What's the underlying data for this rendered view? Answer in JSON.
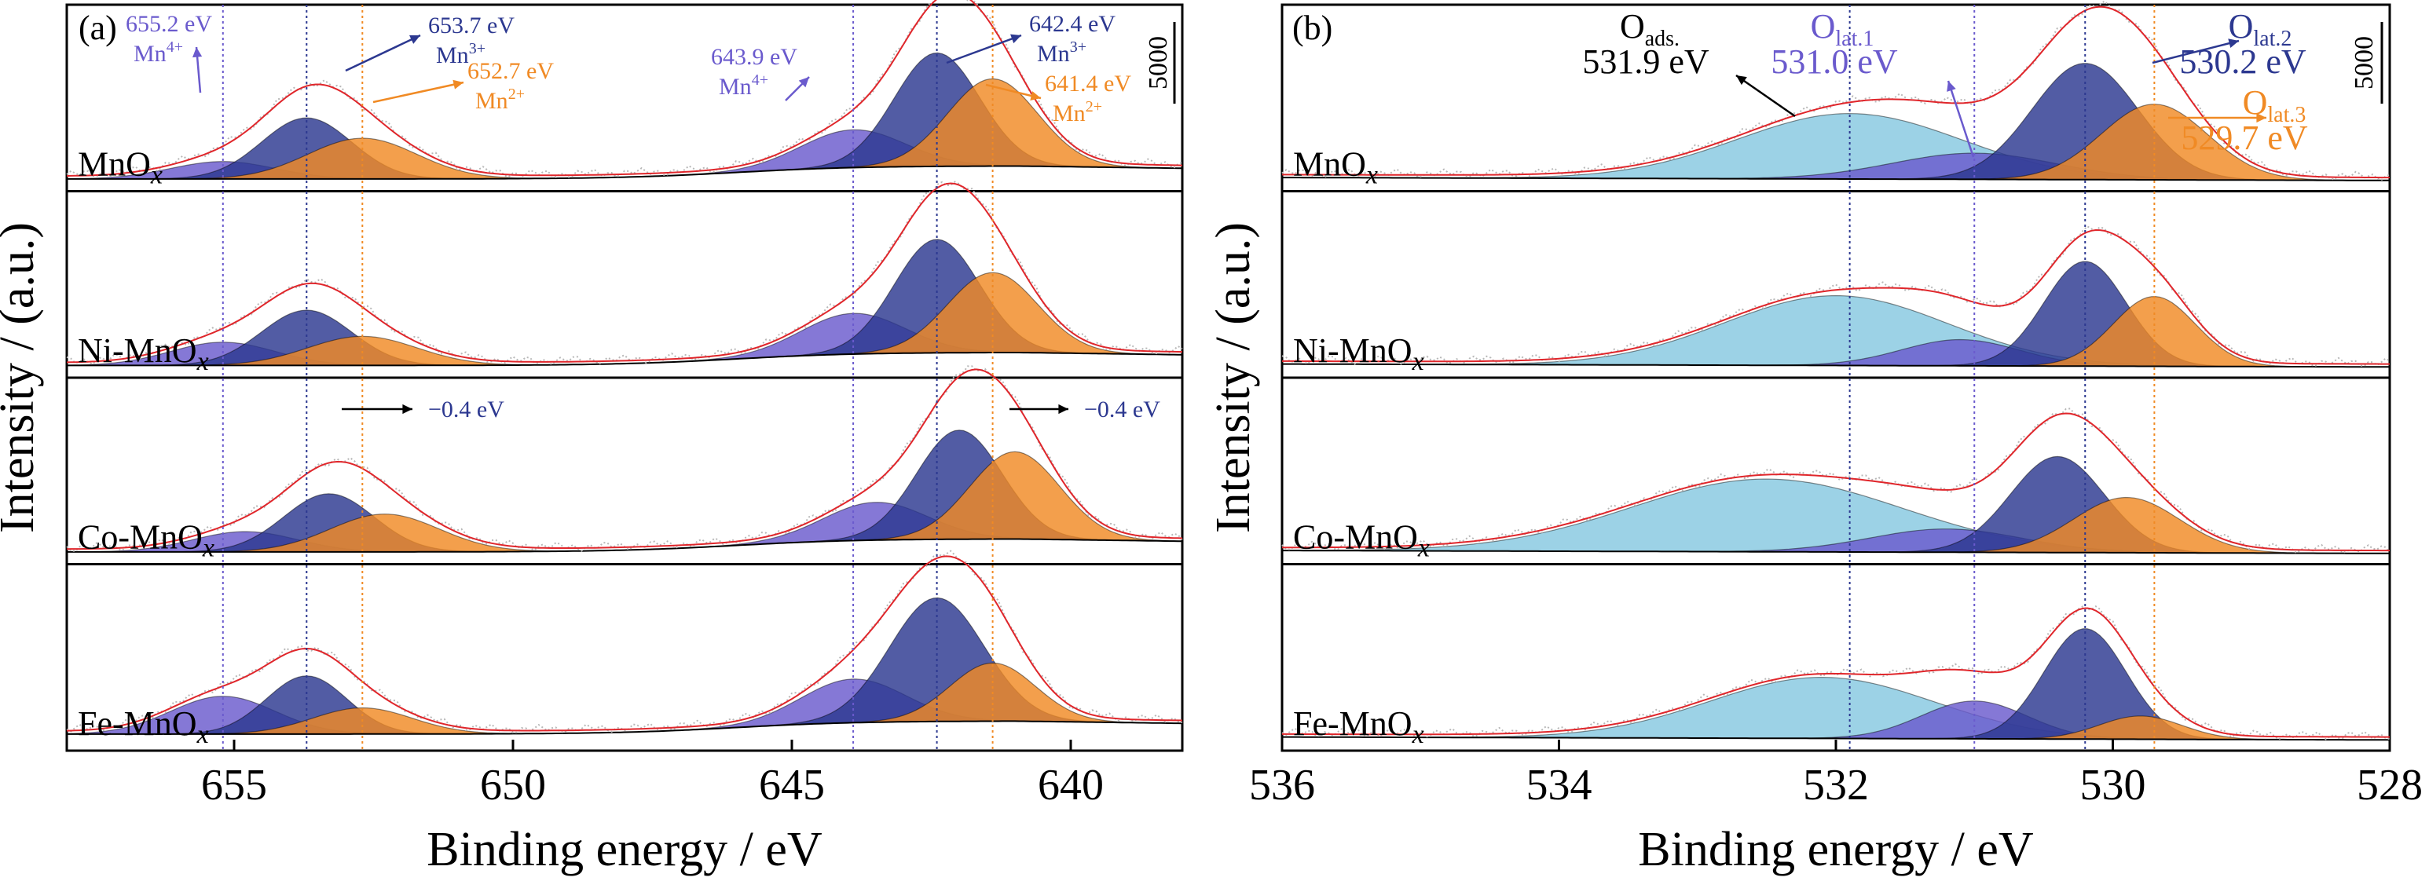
{
  "figure": {
    "y_axis_label": "Intensity / (a.u.)",
    "colors": {
      "mn4": "#6a5acd",
      "mn3": "#2c3890",
      "mn2": "#f08a24",
      "o_ads": "#86c8e0",
      "envelope": "#e0262b",
      "raw": "#b8b8b8"
    }
  },
  "chart_data": [
    {
      "panel": "(a)",
      "type": "area",
      "xlabel": "Binding energy / eV",
      "ylabel": "Intensity / (a.u.)",
      "xlim": [
        658,
        638
      ],
      "x_reversed": true,
      "xticks": [
        655,
        650,
        645,
        640
      ],
      "scale_bar_label": "5000",
      "reference_lines_eV": [
        655.2,
        653.7,
        652.7,
        643.9,
        642.4,
        641.4
      ],
      "annotations": [
        {
          "text": "655.2 eV",
          "sub": "Mn4+",
          "sub_base": "Mn",
          "sub_sup": "4+",
          "color": "#6a5acd",
          "x": 655.2
        },
        {
          "text": "653.7 eV",
          "sub": "Mn3+",
          "sub_base": "Mn",
          "sub_sup": "3+",
          "color": "#2c3890",
          "x": 653.7
        },
        {
          "text": "652.7 eV",
          "sub": "Mn2+",
          "sub_base": "Mn",
          "sub_sup": "2+",
          "color": "#f08a24",
          "x": 652.7
        },
        {
          "text": "643.9 eV",
          "sub": "Mn4+",
          "sub_base": "Mn",
          "sub_sup": "4+",
          "color": "#6a5acd",
          "x": 643.9
        },
        {
          "text": "642.4 eV",
          "sub": "Mn3+",
          "sub_base": "Mn",
          "sub_sup": "3+",
          "color": "#2c3890",
          "x": 642.4
        },
        {
          "text": "641.4 eV",
          "sub": "Mn2+",
          "sub_base": "Mn",
          "sub_sup": "2+",
          "color": "#f08a24",
          "x": 641.4
        }
      ],
      "shift_labels": [
        "−0.4 eV",
        "−0.4 eV"
      ],
      "series": [
        {
          "name": "MnOx",
          "name_base": "MnO",
          "name_sub": "x",
          "components": [
            {
              "species": "Mn4+",
              "center": 655.2,
              "fwhm": 2.2,
              "height": 0.12
            },
            {
              "species": "Mn3+",
              "center": 653.7,
              "fwhm": 1.9,
              "height": 0.42
            },
            {
              "species": "Mn2+",
              "center": 652.7,
              "fwhm": 2.3,
              "height": 0.28
            },
            {
              "species": "Mn4+",
              "center": 643.9,
              "fwhm": 2.2,
              "height": 0.26
            },
            {
              "species": "Mn3+",
              "center": 642.4,
              "fwhm": 1.8,
              "height": 0.78
            },
            {
              "species": "Mn2+",
              "center": 641.4,
              "fwhm": 1.9,
              "height": 0.6
            }
          ]
        },
        {
          "name": "Ni-MnOx",
          "name_base": "Ni-MnO",
          "name_sub": "x",
          "components": [
            {
              "species": "Mn4+",
              "center": 655.2,
              "fwhm": 2.2,
              "height": 0.16
            },
            {
              "species": "Mn3+",
              "center": 653.7,
              "fwhm": 1.9,
              "height": 0.38
            },
            {
              "species": "Mn2+",
              "center": 652.7,
              "fwhm": 2.3,
              "height": 0.2
            },
            {
              "species": "Mn4+",
              "center": 643.9,
              "fwhm": 2.2,
              "height": 0.28
            },
            {
              "species": "Mn3+",
              "center": 642.4,
              "fwhm": 1.8,
              "height": 0.78
            },
            {
              "species": "Mn2+",
              "center": 641.4,
              "fwhm": 1.9,
              "height": 0.55
            }
          ]
        },
        {
          "name": "Co-MnOx",
          "name_base": "Co-MnO",
          "name_sub": "x",
          "components": [
            {
              "species": "Mn4+",
              "center": 654.8,
              "fwhm": 2.2,
              "height": 0.14
            },
            {
              "species": "Mn3+",
              "center": 653.3,
              "fwhm": 1.9,
              "height": 0.4
            },
            {
              "species": "Mn2+",
              "center": 652.3,
              "fwhm": 2.3,
              "height": 0.26
            },
            {
              "species": "Mn4+",
              "center": 643.5,
              "fwhm": 2.2,
              "height": 0.26
            },
            {
              "species": "Mn3+",
              "center": 642.0,
              "fwhm": 1.8,
              "height": 0.75
            },
            {
              "species": "Mn2+",
              "center": 641.0,
              "fwhm": 1.9,
              "height": 0.6
            }
          ]
        },
        {
          "name": "Fe-MnOx",
          "name_base": "Fe-MnO",
          "name_sub": "x",
          "components": [
            {
              "species": "Mn4+",
              "center": 655.2,
              "fwhm": 2.2,
              "height": 0.26
            },
            {
              "species": "Mn3+",
              "center": 653.7,
              "fwhm": 1.7,
              "height": 0.4
            },
            {
              "species": "Mn2+",
              "center": 652.7,
              "fwhm": 2.1,
              "height": 0.18
            },
            {
              "species": "Mn4+",
              "center": 643.9,
              "fwhm": 2.2,
              "height": 0.3
            },
            {
              "species": "Mn3+",
              "center": 642.4,
              "fwhm": 2.0,
              "height": 0.85
            },
            {
              "species": "Mn2+",
              "center": 641.4,
              "fwhm": 1.8,
              "height": 0.4
            }
          ]
        }
      ]
    },
    {
      "panel": "(b)",
      "type": "area",
      "xlabel": "Binding energy / eV",
      "ylabel": "Intensity / (a.u.)",
      "xlim": [
        536,
        528
      ],
      "x_reversed": true,
      "xticks": [
        536,
        534,
        532,
        530,
        528
      ],
      "scale_bar_label": "5000",
      "reference_lines_eV": [
        531.9,
        531.0,
        530.2,
        529.7
      ],
      "annotations": [
        {
          "base": "O",
          "sub": "ads.",
          "value": "531.9 eV",
          "color": "#000000",
          "x": 531.9
        },
        {
          "base": "O",
          "sub": "lat.1",
          "value": "531.0 eV",
          "color": "#6a5acd",
          "x": 531.0
        },
        {
          "base": "O",
          "sub": "lat.2",
          "value": "530.2 eV",
          "color": "#2c3890",
          "x": 530.2
        },
        {
          "base": "O",
          "sub": "lat.3",
          "value": "529.7 eV",
          "color": "#f08a24",
          "x": 529.7
        }
      ],
      "series": [
        {
          "name": "MnOx",
          "name_base": "MnO",
          "name_sub": "x",
          "components": [
            {
              "species": "O_ads",
              "center": 531.9,
              "fwhm": 1.9,
              "height": 0.45
            },
            {
              "species": "O_lat.1",
              "center": 531.0,
              "fwhm": 1.4,
              "height": 0.18
            },
            {
              "species": "O_lat.2",
              "center": 530.2,
              "fwhm": 0.9,
              "height": 0.8
            },
            {
              "species": "O_lat.3",
              "center": 529.7,
              "fwhm": 0.9,
              "height": 0.52
            }
          ]
        },
        {
          "name": "Ni-MnOx",
          "name_base": "Ni-MnO",
          "name_sub": "x",
          "components": [
            {
              "species": "O_ads",
              "center": 532.0,
              "fwhm": 1.9,
              "height": 0.48
            },
            {
              "species": "O_lat.1",
              "center": 531.1,
              "fwhm": 1.0,
              "height": 0.18
            },
            {
              "species": "O_lat.2",
              "center": 530.2,
              "fwhm": 0.7,
              "height": 0.72
            },
            {
              "species": "O_lat.3",
              "center": 529.7,
              "fwhm": 0.7,
              "height": 0.48
            }
          ]
        },
        {
          "name": "Co-MnOx",
          "name_base": "Co-MnO",
          "name_sub": "x",
          "components": [
            {
              "species": "O_ads",
              "center": 532.5,
              "fwhm": 2.3,
              "height": 0.5
            },
            {
              "species": "O_lat.1",
              "center": 531.2,
              "fwhm": 1.3,
              "height": 0.16
            },
            {
              "species": "O_lat.2",
              "center": 530.4,
              "fwhm": 0.8,
              "height": 0.66
            },
            {
              "species": "O_lat.3",
              "center": 529.9,
              "fwhm": 0.9,
              "height": 0.38
            }
          ]
        },
        {
          "name": "Fe-MnOx",
          "name_base": "Fe-MnO",
          "name_sub": "x",
          "components": [
            {
              "species": "O_ads",
              "center": 532.1,
              "fwhm": 1.9,
              "height": 0.42
            },
            {
              "species": "O_lat.1",
              "center": 531.0,
              "fwhm": 0.9,
              "height": 0.26
            },
            {
              "species": "O_lat.2",
              "center": 530.2,
              "fwhm": 0.7,
              "height": 0.76
            },
            {
              "species": "O_lat.3",
              "center": 529.8,
              "fwhm": 0.7,
              "height": 0.16
            }
          ]
        }
      ]
    }
  ]
}
